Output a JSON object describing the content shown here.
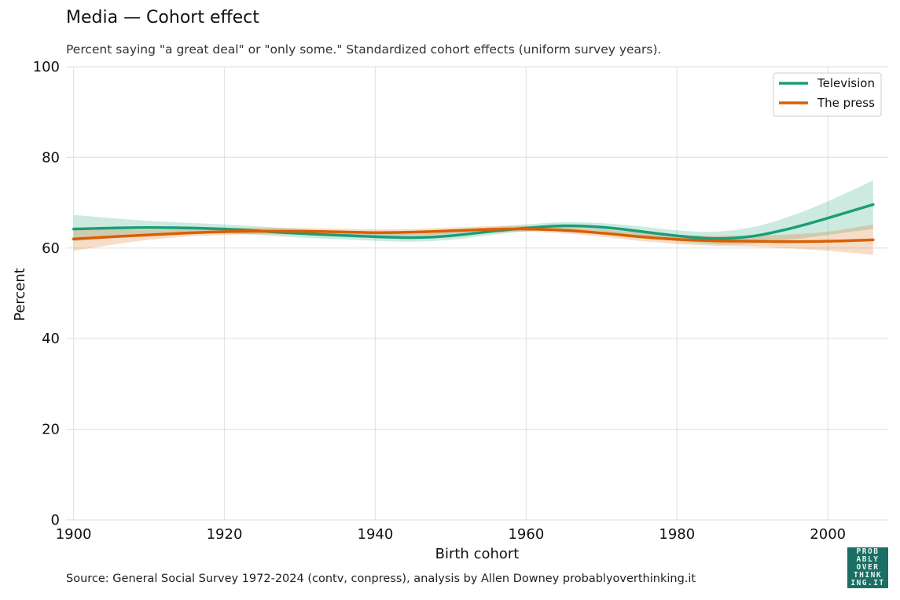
{
  "title": "Media — Cohort effect",
  "subtitle": "Percent saying \"a great deal\" or \"only some.\" Standardized cohort effects (uniform survey years).",
  "source": "Source: General Social Survey 1972-2024 (contv, conpress), analysis by Allen Downey probablyoverthinking.it",
  "logo_lines": [
    "PROB",
    "ABLY",
    "OVER",
    "THINK",
    "ING.IT"
  ],
  "chart_data": {
    "type": "line",
    "xlabel": "Birth cohort",
    "ylabel": "Percent",
    "xlim": [
      1899,
      2008
    ],
    "ylim": [
      0,
      100
    ],
    "xticks": [
      1900,
      1920,
      1940,
      1960,
      1980,
      2000
    ],
    "yticks": [
      0,
      20,
      40,
      60,
      80,
      100
    ],
    "grid": true,
    "legend": "top-right",
    "series": [
      {
        "name": "Television",
        "color": "#1b9e77",
        "x": [
          1900,
          1910,
          1920,
          1930,
          1940,
          1945,
          1950,
          1955,
          1960,
          1965,
          1970,
          1975,
          1980,
          1985,
          1990,
          1995,
          2000,
          2006
        ],
        "y": [
          64.2,
          64.5,
          64.2,
          63.2,
          62.5,
          62.3,
          62.7,
          63.6,
          64.4,
          64.9,
          64.6,
          63.7,
          62.7,
          62.1,
          62.6,
          64.3,
          66.6,
          69.6
        ],
        "lower": [
          61.5,
          63.0,
          63.2,
          62.3,
          61.6,
          61.4,
          61.8,
          62.8,
          63.7,
          64.1,
          63.7,
          62.6,
          61.5,
          60.8,
          60.9,
          61.8,
          62.9,
          64.2
        ],
        "upper": [
          67.3,
          66.0,
          65.2,
          64.2,
          63.3,
          63.1,
          63.6,
          64.5,
          65.2,
          65.7,
          65.5,
          64.8,
          63.9,
          63.6,
          64.6,
          67.0,
          70.3,
          74.9
        ]
      },
      {
        "name": "The press",
        "color": "#d95f02",
        "x": [
          1900,
          1910,
          1920,
          1930,
          1940,
          1945,
          1950,
          1955,
          1960,
          1965,
          1970,
          1975,
          1980,
          1985,
          1990,
          1995,
          2000,
          2006
        ],
        "y": [
          62.0,
          62.9,
          63.6,
          63.7,
          63.4,
          63.5,
          63.8,
          64.1,
          64.2,
          63.9,
          63.3,
          62.5,
          61.9,
          61.6,
          61.5,
          61.4,
          61.5,
          61.8
        ],
        "lower": [
          59.4,
          61.8,
          62.9,
          63.0,
          62.7,
          62.8,
          63.1,
          63.4,
          63.6,
          63.2,
          62.5,
          61.6,
          60.9,
          60.5,
          60.3,
          59.9,
          59.4,
          58.5
        ],
        "upper": [
          64.5,
          64.0,
          64.4,
          64.4,
          64.1,
          64.2,
          64.5,
          64.8,
          64.9,
          64.6,
          64.1,
          63.4,
          62.9,
          62.7,
          62.8,
          63.0,
          63.6,
          65.2
        ]
      }
    ]
  }
}
